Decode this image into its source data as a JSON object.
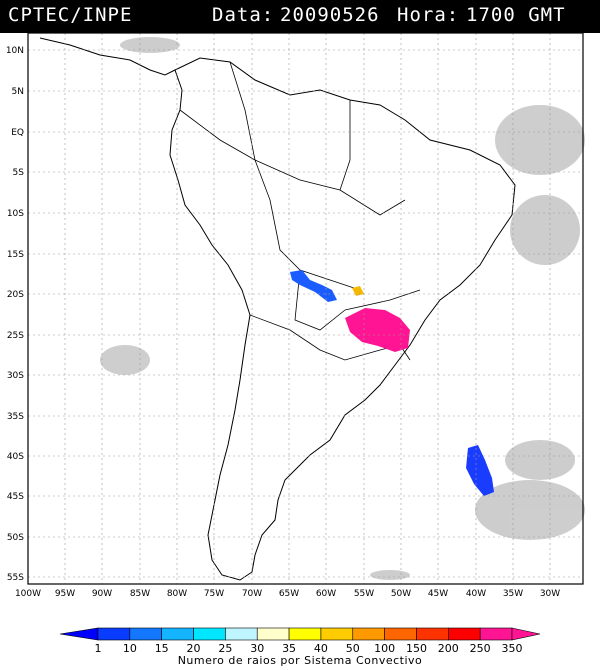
{
  "header": {
    "source": "CPTEC/INPE",
    "date_label": "Data:",
    "date": "20090526",
    "time_label": "Hora:",
    "time": "1700 GMT"
  },
  "map": {
    "lat_labels": [
      "10N",
      "5N",
      "EQ",
      "5S",
      "10S",
      "15S",
      "20S",
      "25S",
      "30S",
      "35S",
      "40S",
      "45S",
      "50S",
      "55S"
    ],
    "lon_labels": [
      "100W",
      "95W",
      "90W",
      "85W",
      "80W",
      "75W",
      "70W",
      "65W",
      "60W",
      "55W",
      "50W",
      "45W",
      "40W",
      "35W",
      "30W"
    ],
    "convective_systems": [
      {
        "name": "Bolivia cluster",
        "color": "#1a5cff"
      },
      {
        "name": "Paraguay-Brazil cluster",
        "color": "#ff1493"
      },
      {
        "name": "Mato Grosso cluster",
        "color": "#f5b800"
      },
      {
        "name": "South Atlantic cluster",
        "color": "#1a3cff"
      }
    ]
  },
  "legend": {
    "caption": "Numero de raios por Sistema Convectivo",
    "values": [
      "1",
      "10",
      "15",
      "20",
      "25",
      "30",
      "35",
      "40",
      "50",
      "100",
      "150",
      "200",
      "250",
      "350"
    ],
    "colors": [
      "#0000ff",
      "#0a3cff",
      "#1478ff",
      "#14b4ff",
      "#00e6ff",
      "#bff5ff",
      "#ffffcc",
      "#ffff00",
      "#ffcc00",
      "#ff9900",
      "#ff6600",
      "#ff3300",
      "#ff0000",
      "#ff1493"
    ]
  }
}
